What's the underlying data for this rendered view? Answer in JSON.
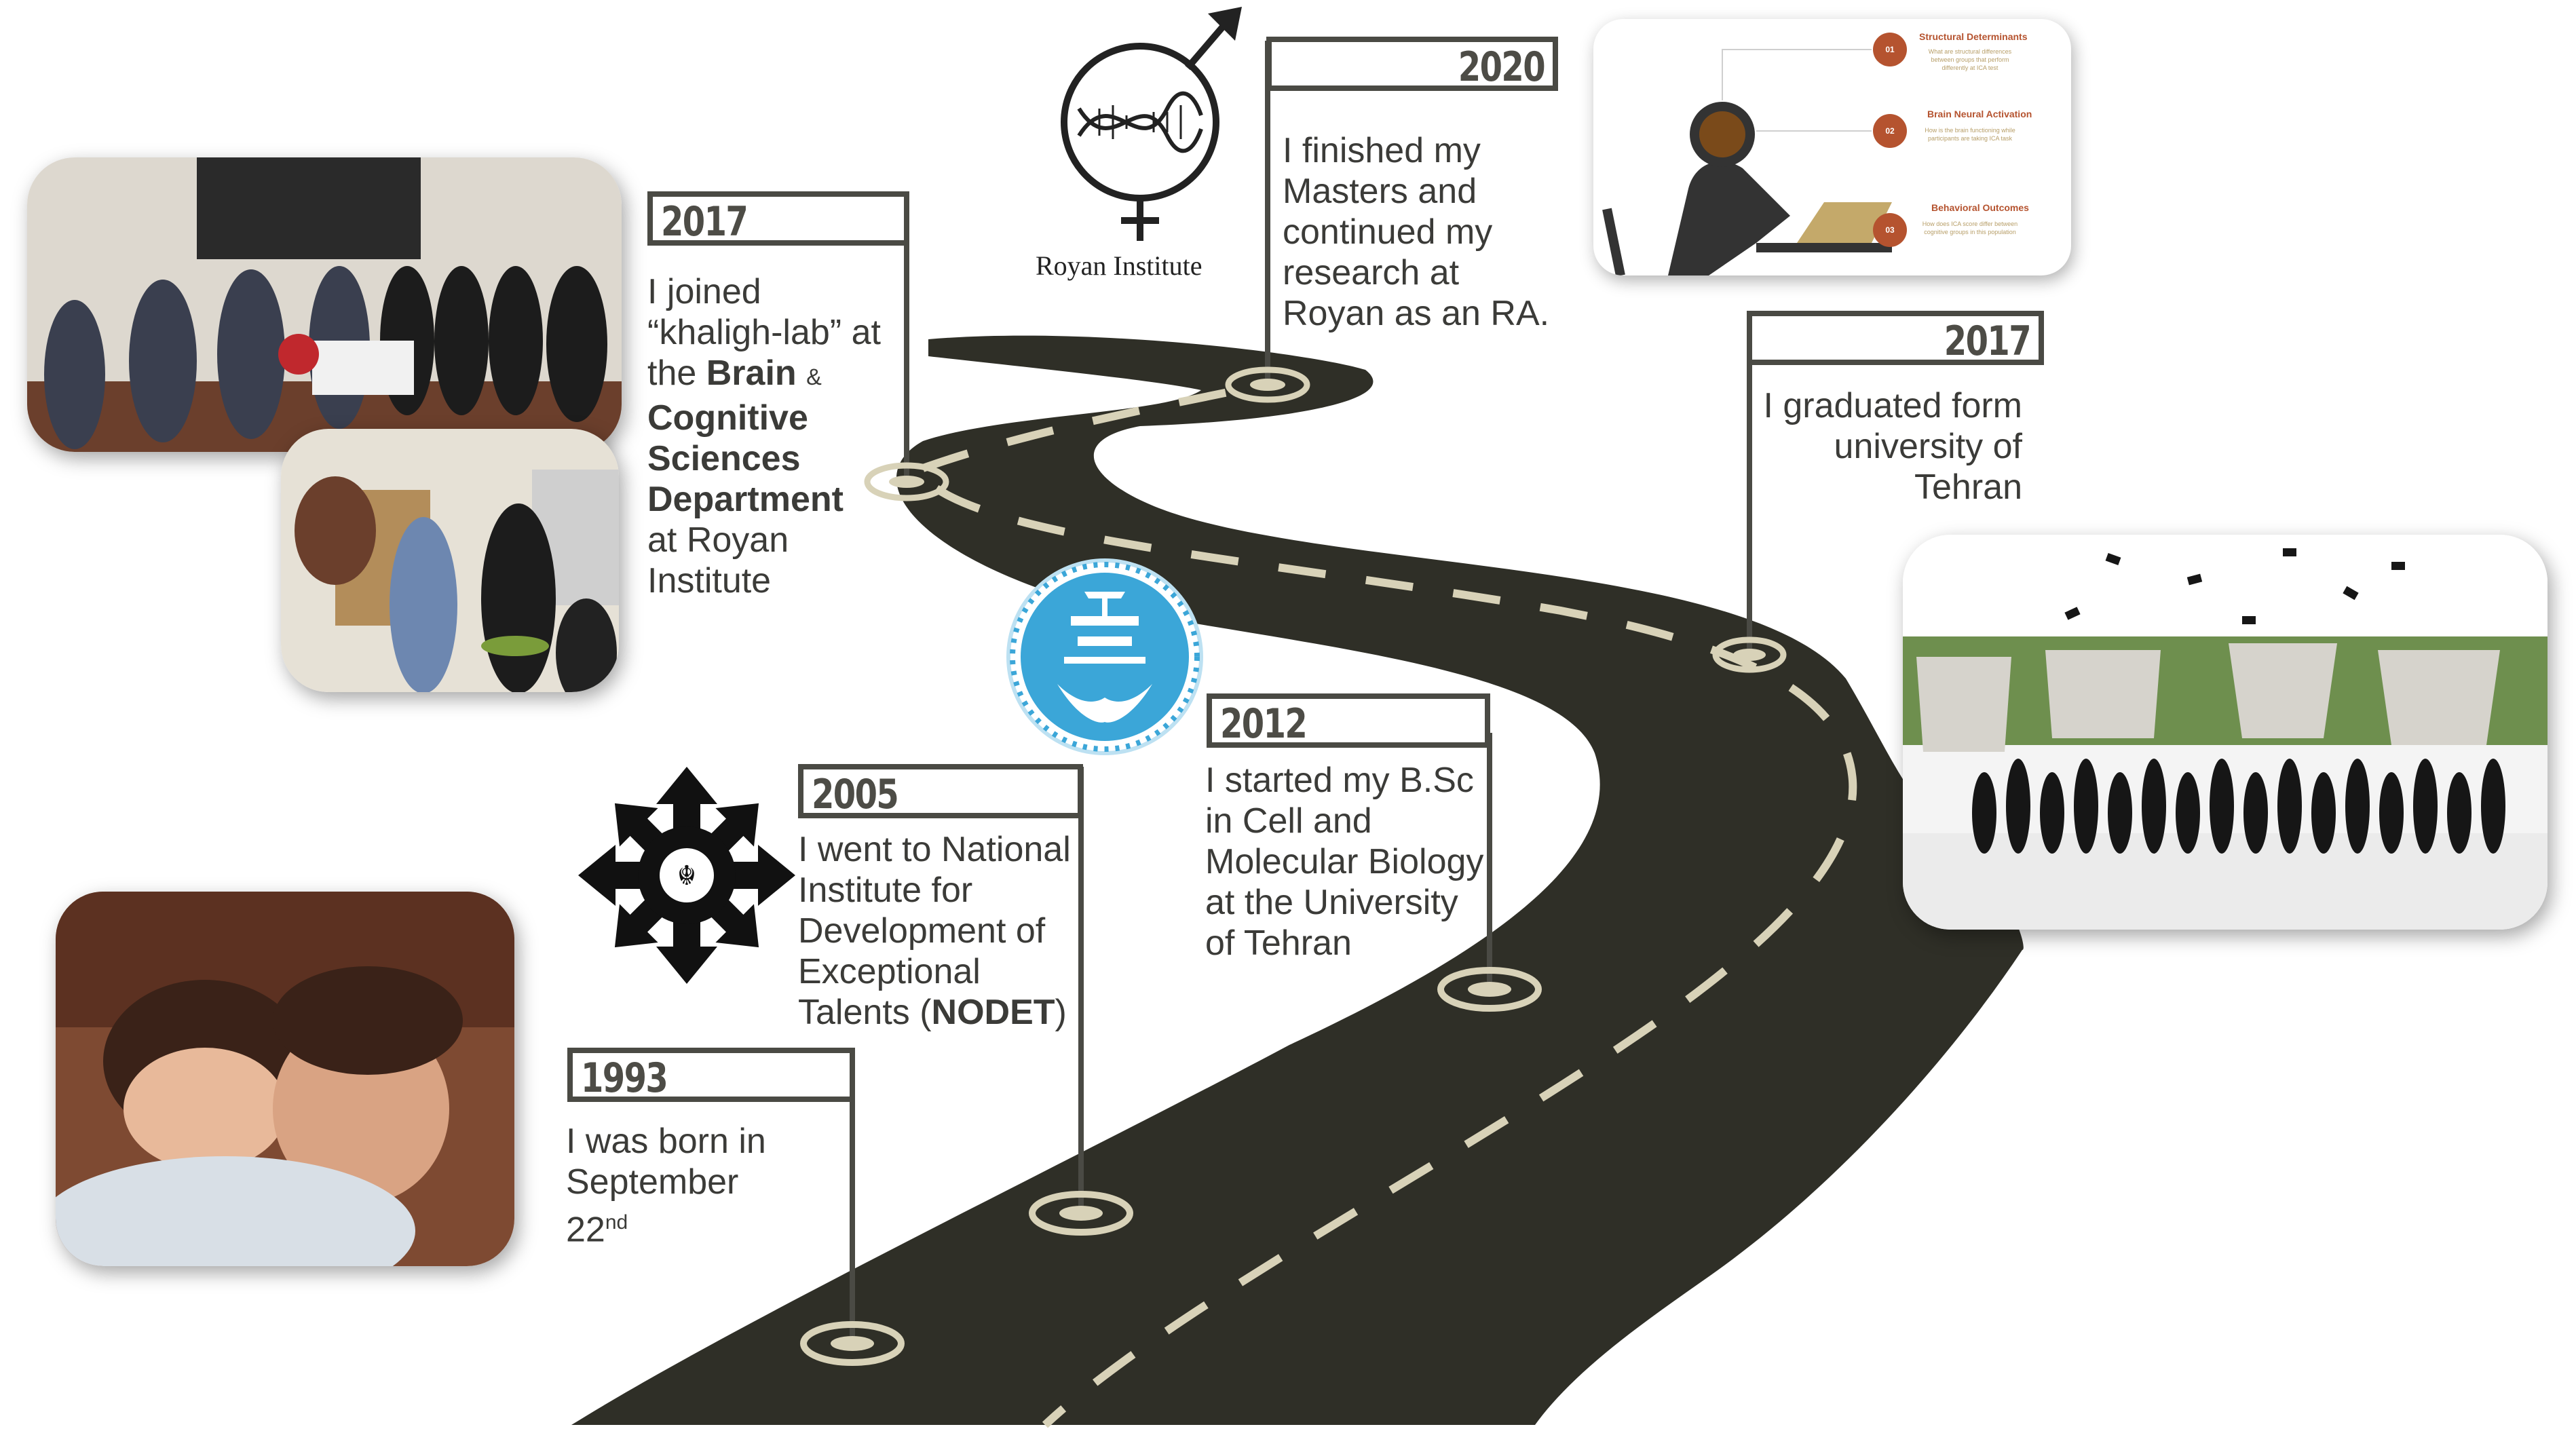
{
  "milestones": [
    {
      "year": "1993",
      "text_lines": [
        "I was born in",
        "September"
      ],
      "text_last": "22",
      "text_sup": "nd"
    },
    {
      "year": "2005",
      "text_lines": [
        "I went to National",
        "Institute for",
        "Development of",
        "Exceptional"
      ],
      "text_last": "Talents (",
      "text_bold": "NODET",
      "text_end": ")"
    },
    {
      "year": "2012",
      "text_lines": [
        "I started my B.Sc",
        "in Cell and",
        "Molecular Biology",
        "at the University",
        "of Tehran"
      ]
    },
    {
      "year": "2017",
      "text_lines": [
        "I graduated form",
        "university of",
        "Tehran"
      ]
    },
    {
      "year": "2017",
      "line1": "I joined",
      "line2": "“khaligh-lab” at",
      "line3_prefix": "the ",
      "line3_bold": "Brain",
      "line3_amp": "&",
      "bold_lines": [
        "Cognitive",
        "Sciences",
        "Department"
      ],
      "tail_lines": [
        "at Royan",
        "Institute"
      ]
    },
    {
      "year": "2020",
      "text_lines": [
        "I finished my",
        "Masters and",
        "continued my",
        "research at",
        "Royan as an RA."
      ]
    }
  ],
  "logos": {
    "royan_caption": "Royan Institute"
  },
  "research_slide": {
    "items": [
      {
        "num": "01",
        "title": "Structural Determinants",
        "desc": "What are structural differences between groups that perform differently at ICA test"
      },
      {
        "num": "02",
        "title": "Brain Neural Activation",
        "desc": "How is the brain functioning while participants are taking ICA task"
      },
      {
        "num": "03",
        "title": "Behavioral Outcomes",
        "desc": "How does ICA score differ between cognitive groups in this population"
      }
    ]
  },
  "colors": {
    "road": "#2f2f27",
    "dash": "#d8d2b8",
    "frame": "#4a4a44",
    "accent": "#b5532f"
  }
}
